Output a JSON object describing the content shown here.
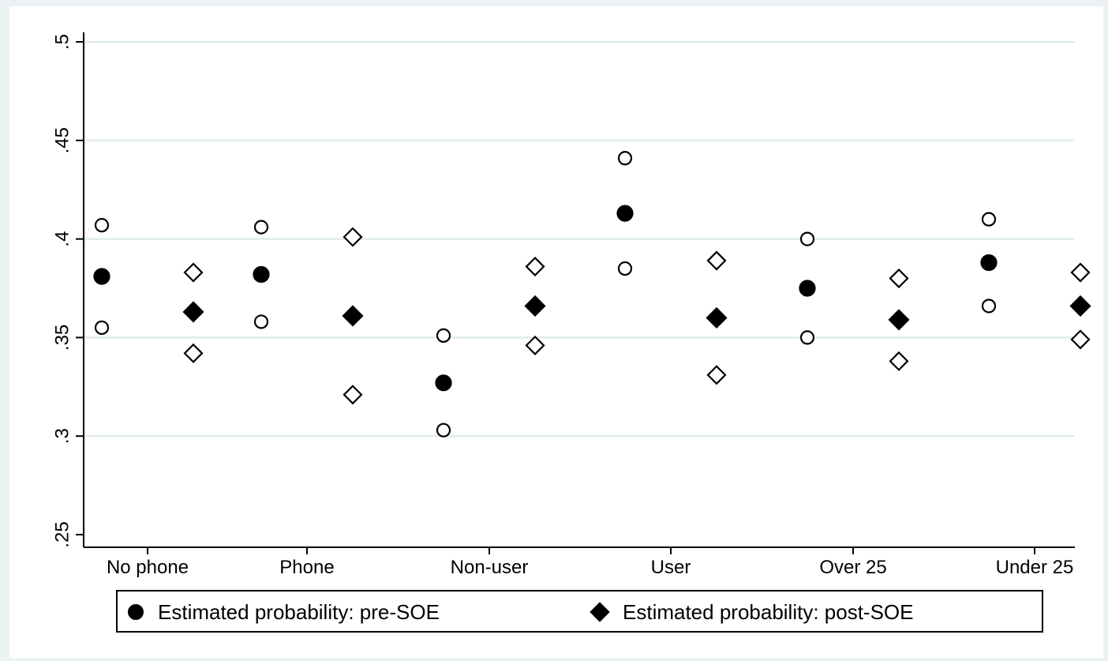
{
  "chart_data": {
    "type": "scatter",
    "title": "",
    "xlabel": "",
    "ylabel": "",
    "ylim": [
      0.25,
      0.5
    ],
    "yticks": [
      {
        "value": 0.25,
        "label": ".25"
      },
      {
        "value": 0.3,
        "label": ".3"
      },
      {
        "value": 0.35,
        "label": ".35"
      },
      {
        "value": 0.4,
        "label": ".4"
      },
      {
        "value": 0.45,
        "label": ".45"
      },
      {
        "value": 0.5,
        "label": ".5"
      }
    ],
    "grid": true,
    "categories": [
      "No phone",
      "Phone",
      "Non-user",
      "User",
      "Over 25",
      "Under 25"
    ],
    "series": [
      {
        "name": "Estimated probability: pre-SOE",
        "marker": "circle",
        "estimate": [
          0.381,
          0.382,
          0.327,
          0.413,
          0.375,
          0.388
        ],
        "ci_upper": [
          0.407,
          0.406,
          0.351,
          0.441,
          0.4,
          0.41
        ],
        "ci_lower": [
          0.355,
          0.358,
          0.303,
          0.385,
          0.35,
          0.366
        ]
      },
      {
        "name": "Estimated probability: post-SOE",
        "marker": "diamond",
        "estimate": [
          0.363,
          0.361,
          0.366,
          0.36,
          0.359,
          0.366
        ],
        "ci_upper": [
          0.383,
          0.401,
          0.386,
          0.389,
          0.38,
          0.383
        ],
        "ci_lower": [
          0.342,
          0.321,
          0.346,
          0.331,
          0.338,
          0.349
        ]
      }
    ],
    "legend_position": "bottom",
    "colors": {
      "background": "#eaf2f3",
      "plot_area": "#ffffff",
      "gridline": "#e1ecee",
      "marker": "#000000"
    }
  }
}
